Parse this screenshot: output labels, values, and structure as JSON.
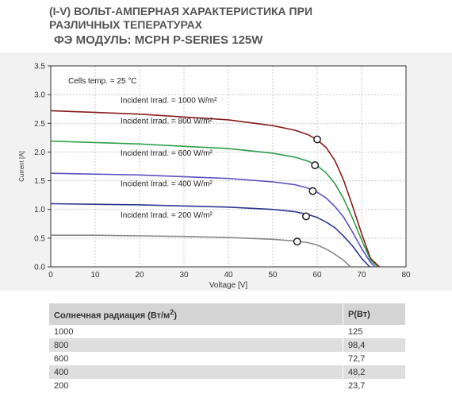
{
  "heading": {
    "line1": "(I-V) ВОЛЬТ-АМПЕРНАЯ ХАРАКТЕРИСТИКА ПРИ",
    "line2": "РАЗЛИЧНЫХ ТЕПЕРАТУРАХ",
    "line3": "ФЭ МОДУЛЬ:  MCPH P-SERIES 125W"
  },
  "chart_data": {
    "type": "line",
    "xlabel": "Voltage [V]",
    "ylabel": "Current [A]",
    "xlim": [
      0,
      80
    ],
    "ylim": [
      0,
      3.5
    ],
    "xticks": [
      "0",
      "10",
      "20",
      "30",
      "40",
      "50",
      "60",
      "70",
      "80"
    ],
    "yticks": [
      "0.0",
      "0.5",
      "1.0",
      "1.5",
      "2.0",
      "2.5",
      "3.0",
      "3.5"
    ],
    "grid": true,
    "annotation": "Cells temp.  = 25 °C",
    "series": [
      {
        "name": "Incident Irrad. = 1000 W/m²",
        "color": "#8b1a1a",
        "x": [
          0,
          20,
          40,
          50,
          55,
          58,
          60,
          62,
          64,
          66,
          68,
          70,
          72,
          74
        ],
        "y": [
          2.72,
          2.66,
          2.56,
          2.46,
          2.38,
          2.3,
          2.21,
          2.08,
          1.85,
          1.5,
          1.05,
          0.58,
          0.15,
          0.0
        ],
        "mpp": [
          60,
          2.22
        ]
      },
      {
        "name": "Incident Irrad. = 800 W/m²",
        "color": "#2e9e4a",
        "x": [
          0,
          20,
          40,
          50,
          55,
          58,
          60,
          62,
          64,
          66,
          68,
          70,
          72,
          73.6
        ],
        "y": [
          2.19,
          2.14,
          2.06,
          1.98,
          1.91,
          1.84,
          1.76,
          1.64,
          1.45,
          1.18,
          0.84,
          0.47,
          0.12,
          0.0
        ],
        "mpp": [
          59.5,
          1.77
        ]
      },
      {
        "name": "Incident Irrad. = 600 W/m²",
        "color": "#5a4fc0",
        "x": [
          0,
          20,
          40,
          50,
          55,
          58,
          60,
          62,
          64,
          66,
          68,
          70,
          72,
          73
        ],
        "y": [
          1.63,
          1.6,
          1.54,
          1.48,
          1.43,
          1.37,
          1.3,
          1.2,
          1.05,
          0.86,
          0.6,
          0.32,
          0.08,
          0.0
        ],
        "mpp": [
          59,
          1.32
        ]
      },
      {
        "name": "Incident Irrad. = 400 W/m²",
        "color": "#2c3590",
        "x": [
          0,
          20,
          40,
          50,
          55,
          58,
          60,
          62,
          64,
          66,
          68,
          70,
          71.8
        ],
        "y": [
          1.1,
          1.08,
          1.04,
          1.0,
          0.96,
          0.91,
          0.86,
          0.78,
          0.68,
          0.53,
          0.36,
          0.15,
          0.0
        ],
        "mpp": [
          57.5,
          0.88
        ]
      },
      {
        "name": "Incident Irrad. = 200 W/m²",
        "color": "#888888",
        "x": [
          0,
          10,
          20,
          30,
          40,
          50,
          55,
          58,
          60,
          62,
          64,
          66,
          67.5
        ],
        "y": [
          0.55,
          0.55,
          0.54,
          0.53,
          0.51,
          0.48,
          0.45,
          0.42,
          0.38,
          0.31,
          0.22,
          0.11,
          0.0
        ],
        "mpp": [
          55.5,
          0.44
        ]
      }
    ]
  },
  "table": {
    "header_col1": "Солнечная радиация (Вт/м",
    "header_sup": "2",
    "header_close": ")",
    "header_col2": "P(Вт)",
    "rows": [
      {
        "irradiance": "1000",
        "power": "125"
      },
      {
        "irradiance": "800",
        "power": "98,4"
      },
      {
        "irradiance": "600",
        "power": "72,7"
      },
      {
        "irradiance": "400",
        "power": "48,2"
      },
      {
        "irradiance": "200",
        "power": "23,7"
      }
    ]
  }
}
